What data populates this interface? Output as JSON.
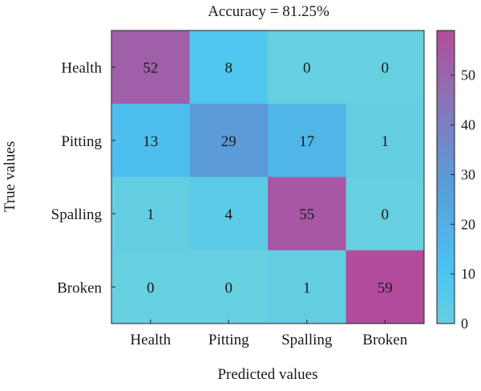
{
  "chart_data": {
    "type": "heatmap",
    "title": "Accuracy = 81.25%",
    "xlabel": "Predicted values",
    "ylabel": "True values",
    "x_categories": [
      "Health",
      "Pitting",
      "Spalling",
      "Broken"
    ],
    "y_categories": [
      "Health",
      "Pitting",
      "Spalling",
      "Broken"
    ],
    "values": [
      [
        52,
        8,
        0,
        0
      ],
      [
        13,
        29,
        17,
        1
      ],
      [
        1,
        4,
        55,
        0
      ],
      [
        0,
        0,
        1,
        59
      ]
    ],
    "colorbar": {
      "range": [
        0,
        59
      ],
      "ticks": [
        0,
        10,
        20,
        30,
        40,
        50
      ],
      "colors": {
        "low": "#66cfe0",
        "mid_low": "#4ac5f2",
        "mid": "#5b9ad6",
        "mid_high": "#8f70b5",
        "high": "#b34c9c"
      }
    }
  }
}
